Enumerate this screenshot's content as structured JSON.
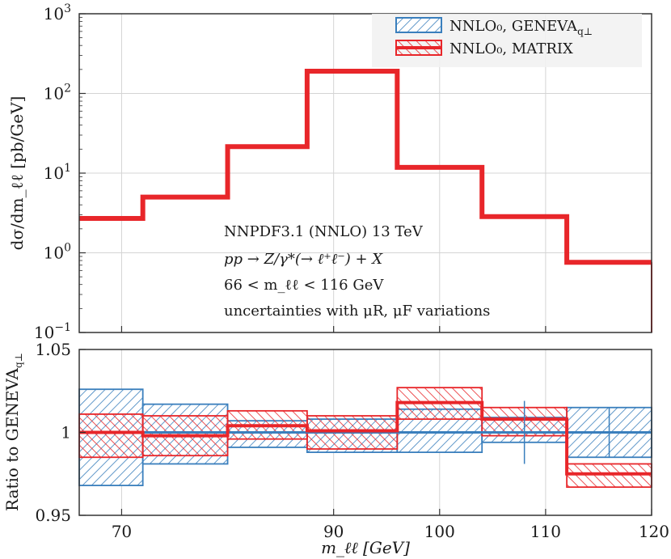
{
  "chart_data": [
    {
      "type": "line",
      "panel": "main",
      "title": "",
      "xlabel": "",
      "ylabel": "dσ/dm_ℓℓ [pb/GeV]",
      "yscale": "log",
      "ylim": [
        0.1,
        1000
      ],
      "xlim": [
        66,
        120
      ],
      "y_ticks": [
        {
          "value": 0.1,
          "base": "10",
          "exp": "−1"
        },
        {
          "value": 1,
          "base": "10",
          "exp": "0"
        },
        {
          "value": 10,
          "base": "10",
          "exp": "1"
        },
        {
          "value": 100,
          "base": "10",
          "exp": "2"
        },
        {
          "value": 1000,
          "base": "10",
          "exp": "3"
        }
      ],
      "bin_edges": [
        66,
        72,
        80,
        87.5,
        96,
        104,
        112,
        120
      ],
      "series": [
        {
          "name": "NNLO₀, GENEVA",
          "subscript": "q⊥",
          "color": "#3a7fbd",
          "values": [
            2.7,
            5.0,
            21.5,
            190,
            11.8,
            2.85,
            0.76
          ]
        },
        {
          "name": "NNLO₀, MATRIX",
          "subscript": "",
          "color": "#e8262a",
          "values": [
            2.7,
            5.0,
            21.5,
            190,
            11.8,
            2.85,
            0.76
          ]
        }
      ],
      "annotations": [
        "NNPDF3.1 (NNLO) 13 TeV",
        "pp → Z/γ*(→ ℓ⁺ℓ⁻) + X",
        "66 < m_ℓℓ < 116 GeV",
        "uncertainties with μR, μF variations"
      ],
      "legend_position": "top-right"
    },
    {
      "type": "line",
      "panel": "ratio",
      "title": "",
      "xlabel": "m_ℓℓ [GeV]",
      "ylabel": "Ratio to GENEVA",
      "ylabel_subscript": "q⊥",
      "ylim": [
        0.95,
        1.05
      ],
      "xlim": [
        66,
        120
      ],
      "x_ticks": [
        "70",
        "90",
        "100",
        "110",
        "120"
      ],
      "x_tick_values": [
        70,
        90,
        100,
        110,
        120
      ],
      "y_ticks": [
        "0.95",
        "1",
        "1.05"
      ],
      "y_tick_values": [
        0.95,
        1.0,
        1.05
      ],
      "bin_edges": [
        66,
        72,
        80,
        87.5,
        96,
        104,
        112,
        120
      ],
      "series": [
        {
          "name": "NNLO₀, GENEVA",
          "color": "#3a7fbd",
          "values": [
            1.0,
            1.0,
            1.0,
            1.0,
            1.0,
            1.0,
            1.0
          ],
          "lower": [
            0.968,
            0.981,
            0.991,
            0.988,
            0.988,
            0.994,
            0.985
          ],
          "upper": [
            1.026,
            1.017,
            1.007,
            1.008,
            1.014,
            1.009,
            1.015
          ]
        },
        {
          "name": "NNLO₀, MATRIX",
          "color": "#e8262a",
          "values": [
            1.0,
            0.998,
            1.004,
            1.001,
            1.018,
            1.008,
            0.975
          ],
          "lower": [
            0.985,
            0.986,
            0.996,
            0.99,
            1.008,
            0.998,
            0.967
          ],
          "upper": [
            1.011,
            1.01,
            1.013,
            1.01,
            1.027,
            1.015,
            0.981
          ]
        }
      ],
      "error_bars": [
        {
          "x": 108,
          "y": 1.0,
          "err": 0.019
        },
        {
          "x": 116,
          "y": 1.0,
          "err": 0.015
        }
      ]
    }
  ]
}
